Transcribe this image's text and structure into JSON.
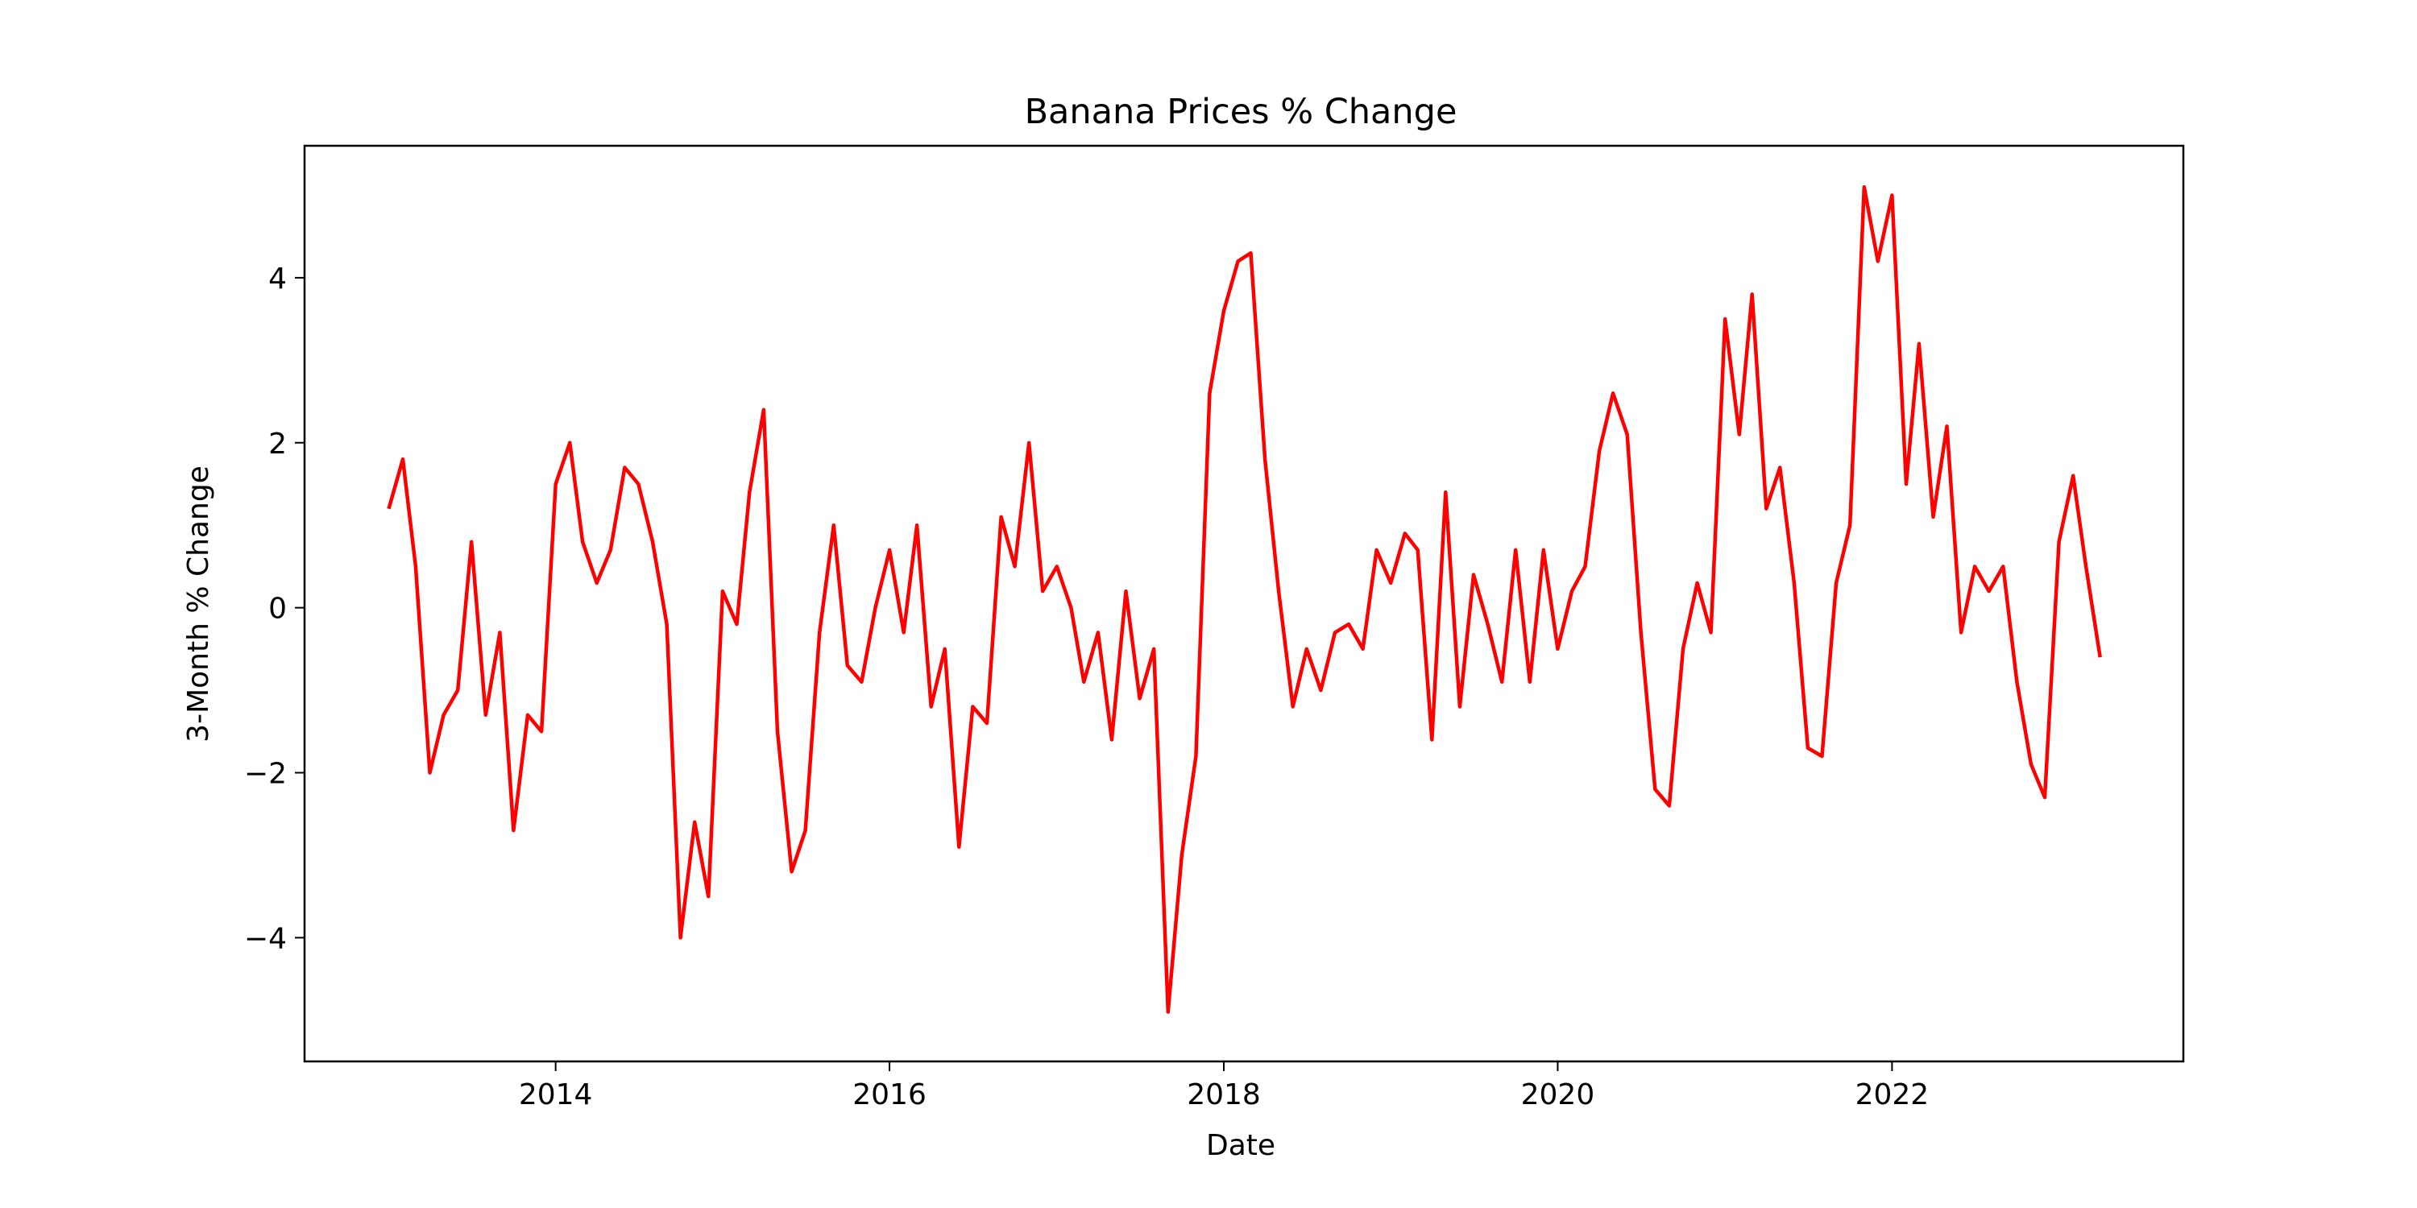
{
  "chart_data": {
    "type": "line",
    "title": "Banana Prices % Change",
    "xlabel": "Date",
    "ylabel": "3-Month % Change",
    "xlim": [
      "2012-07-01",
      "2023-09-30"
    ],
    "ylim": [
      -5.5,
      5.6
    ],
    "x_ticks": [
      "2014-01-01",
      "2016-01-01",
      "2018-01-01",
      "2020-01-01",
      "2022-01-01"
    ],
    "x_tick_labels": [
      "2014",
      "2016",
      "2018",
      "2020",
      "2022"
    ],
    "y_ticks": [
      -4,
      -2,
      0,
      2,
      4
    ],
    "y_tick_labels": [
      "−4",
      "−2",
      "0",
      "2",
      "4"
    ],
    "grid": false,
    "series": [
      {
        "color": "#ff0000",
        "x": [
          "2013-01-01",
          "2013-02-01",
          "2013-03-01",
          "2013-04-01",
          "2013-05-01",
          "2013-06-01",
          "2013-07-01",
          "2013-08-01",
          "2013-09-01",
          "2013-10-01",
          "2013-11-01",
          "2013-12-01",
          "2014-01-01",
          "2014-02-01",
          "2014-03-01",
          "2014-04-01",
          "2014-05-01",
          "2014-06-01",
          "2014-07-01",
          "2014-08-01",
          "2014-09-01",
          "2014-10-01",
          "2014-11-01",
          "2014-12-01",
          "2015-01-01",
          "2015-02-01",
          "2015-03-01",
          "2015-04-01",
          "2015-05-01",
          "2015-06-01",
          "2015-07-01",
          "2015-08-01",
          "2015-09-01",
          "2015-10-01",
          "2015-11-01",
          "2015-12-01",
          "2016-01-01",
          "2016-02-01",
          "2016-03-01",
          "2016-04-01",
          "2016-05-01",
          "2016-06-01",
          "2016-07-01",
          "2016-08-01",
          "2016-09-01",
          "2016-10-01",
          "2016-11-01",
          "2016-12-01",
          "2017-01-01",
          "2017-02-01",
          "2017-03-01",
          "2017-04-01",
          "2017-05-01",
          "2017-06-01",
          "2017-07-01",
          "2017-08-01",
          "2017-09-01",
          "2017-10-01",
          "2017-11-01",
          "2017-12-01",
          "2018-01-01",
          "2018-02-01",
          "2018-03-01",
          "2018-04-01",
          "2018-05-01",
          "2018-06-01",
          "2018-07-01",
          "2018-08-01",
          "2018-09-01",
          "2018-10-01",
          "2018-11-01",
          "2018-12-01",
          "2019-01-01",
          "2019-02-01",
          "2019-03-01",
          "2019-04-01",
          "2019-05-01",
          "2019-06-01",
          "2019-07-01",
          "2019-08-01",
          "2019-09-01",
          "2019-10-01",
          "2019-11-01",
          "2019-12-01",
          "2020-01-01",
          "2020-02-01",
          "2020-03-01",
          "2020-04-01",
          "2020-05-01",
          "2020-06-01",
          "2020-07-01",
          "2020-08-01",
          "2020-09-01",
          "2020-10-01",
          "2020-11-01",
          "2020-12-01",
          "2021-01-01",
          "2021-02-01",
          "2021-03-01",
          "2021-04-01",
          "2021-05-01",
          "2021-06-01",
          "2021-07-01",
          "2021-08-01",
          "2021-09-01",
          "2021-10-01",
          "2021-11-01",
          "2021-12-01",
          "2022-01-01",
          "2022-02-01",
          "2022-03-01",
          "2022-04-01",
          "2022-05-01",
          "2022-06-01",
          "2022-07-01",
          "2022-08-01",
          "2022-09-01",
          "2022-10-01",
          "2022-11-01",
          "2022-12-01",
          "2023-01-01",
          "2023-02-01",
          "2023-03-01",
          "2023-04-01"
        ],
        "values": [
          1.2,
          1.8,
          0.5,
          -2.0,
          -1.3,
          -1.0,
          0.8,
          -1.3,
          -0.3,
          -2.7,
          -1.3,
          -1.5,
          1.5,
          2.0,
          0.8,
          0.3,
          0.7,
          1.7,
          1.5,
          0.8,
          -0.2,
          -4.0,
          -2.6,
          -3.5,
          0.2,
          -0.2,
          1.4,
          2.4,
          -1.5,
          -3.2,
          -2.7,
          -0.3,
          1.0,
          -0.7,
          -0.9,
          0.0,
          0.7,
          -0.3,
          1.0,
          -1.2,
          -0.5,
          -2.9,
          -1.2,
          -1.4,
          1.1,
          0.5,
          2.0,
          0.2,
          0.5,
          0.0,
          -0.9,
          -0.3,
          -1.6,
          0.2,
          -1.1,
          -0.5,
          -4.9,
          -3.0,
          -1.8,
          2.6,
          3.6,
          4.2,
          4.3,
          1.8,
          0.2,
          -1.2,
          -0.5,
          -1.0,
          -0.3,
          -0.2,
          -0.5,
          0.7,
          0.3,
          0.9,
          0.7,
          -1.6,
          1.4,
          -1.2,
          0.4,
          -0.2,
          -0.9,
          0.7,
          -0.9,
          0.7,
          -0.5,
          0.2,
          0.5,
          1.9,
          2.6,
          2.1,
          -0.3,
          -2.2,
          -2.4,
          -0.5,
          0.3,
          -0.3,
          3.5,
          2.1,
          3.8,
          1.2,
          1.7,
          0.3,
          -1.7,
          -1.8,
          0.3,
          1.0,
          5.1,
          4.2,
          5.0,
          1.5,
          3.2,
          1.1,
          2.2,
          -0.3,
          0.5,
          0.2,
          0.5,
          -0.9,
          -1.9,
          -2.3,
          0.8,
          1.6,
          0.5,
          -0.6
        ]
      }
    ]
  }
}
